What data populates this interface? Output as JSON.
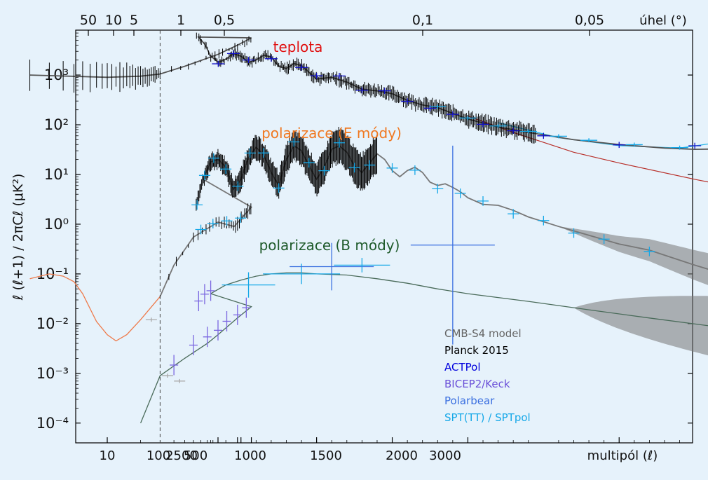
{
  "chart_data": {
    "type": "line",
    "y_scale": "log",
    "ylim": [
      4e-05,
      8000
    ],
    "ylabel": "ℓ (ℓ+1) / 2πCℓ  (μK²)",
    "xlabel": "multipól (ℓ)",
    "top_axis_label": "úhel (°)",
    "x_tick_labels": [
      "10",
      "100",
      "2500",
      "500",
      "1000",
      "1500",
      "2000",
      "3000"
    ],
    "top_tick_labels": [
      "50",
      "10",
      "5",
      "1",
      "0,5",
      "0,1",
      "0,05"
    ],
    "y_tick_labels": [
      "10³",
      "10²",
      "10¹",
      "10⁰",
      "10⁻¹",
      "10⁻²",
      "10⁻³",
      "10⁻⁴"
    ],
    "y_tick_values": [
      1000,
      100,
      10,
      1,
      0.1,
      0.01,
      0.001,
      0.0001
    ],
    "vline_ell": 30,
    "annotations": [
      {
        "text": "teplota",
        "color": "#e01010"
      },
      {
        "text": "polarizace (E módy)",
        "color": "#f07820"
      },
      {
        "text": "polarizace (B módy)",
        "color": "#1e5a2a"
      }
    ],
    "legend": {
      "placement": "lower-right",
      "entries": [
        {
          "name": "CMB-S4  model",
          "color": "#666666"
        },
        {
          "name": "Planck 2015",
          "color": "#000000"
        },
        {
          "name": "ACTPol",
          "color": "#0000dd"
        },
        {
          "name": "BICEP2/Keck",
          "color": "#6a4fd8"
        },
        {
          "name": "Polarbear",
          "color": "#3a6fe0"
        },
        {
          "name": "SPT(TT) / SPTpol",
          "color": "#16a8e8"
        }
      ]
    },
    "series": [
      {
        "name": "teplota",
        "ell": [
          2,
          10,
          20,
          30,
          50,
          100,
          150,
          200,
          220,
          260,
          300,
          350,
          400,
          450,
          500,
          550,
          600,
          650,
          700,
          750,
          800,
          850,
          900,
          1000,
          1100,
          1200,
          1300,
          1400,
          1500,
          1600,
          1700,
          1800,
          2000,
          2200,
          2400,
          2700,
          3000,
          3300,
          3500,
          3800,
          4000
        ],
        "values": [
          1000,
          900,
          950,
          1050,
          1500,
          2600,
          4000,
          5600,
          5800,
          4200,
          2400,
          1800,
          2100,
          2700,
          2400,
          1800,
          2000,
          2500,
          2300,
          1500,
          1350,
          1700,
          1550,
          830,
          900,
          720,
          520,
          480,
          420,
          310,
          250,
          220,
          130,
          90,
          70,
          50,
          40,
          34,
          32,
          33,
          36
        ]
      },
      {
        "name": "polarizace (E módy)",
        "ell": [
          30,
          40,
          60,
          100,
          140,
          200,
          250,
          300,
          350,
          400,
          450,
          500,
          550,
          600,
          650,
          700,
          750,
          800,
          850,
          900,
          950,
          1000,
          1050,
          1100,
          1150,
          1200,
          1250,
          1300,
          1350,
          1400,
          1450,
          1500,
          1550,
          1600,
          1650,
          1700,
          1750,
          1800,
          1850,
          1900,
          1950,
          2000,
          2100,
          2200,
          2300,
          2400,
          2600,
          2800,
          3000,
          3200,
          3500,
          3800,
          4000
        ],
        "values": [
          0.035,
          0.15,
          0.55,
          1.1,
          0.9,
          2.2,
          8,
          18,
          20,
          14,
          5,
          8,
          22,
          35,
          25,
          11,
          6,
          20,
          38,
          30,
          15,
          8,
          14,
          32,
          38,
          28,
          15,
          11,
          17,
          26,
          20,
          12,
          9,
          12,
          14,
          11,
          7,
          6,
          6.5,
          5.5,
          4.5,
          3.4,
          2.5,
          2.4,
          1.9,
          1.4,
          0.9,
          0.6,
          0.4,
          0.3,
          0.15,
          0.08,
          0.06
        ]
      },
      {
        "name": "polarizace (B módy)",
        "ell": [
          2,
          8,
          15,
          20,
          30,
          50,
          80,
          100,
          150,
          200,
          300,
          400,
          500,
          600,
          700,
          800,
          900,
          1000,
          1200,
          1400,
          1600,
          1800,
          2000,
          2400,
          2800,
          3200,
          3600,
          4000
        ],
        "values": [
          0.1,
          0.08,
          0.006,
          0.0001,
          0.0009,
          0.002,
          0.004,
          0.006,
          0.013,
          0.022,
          0.04,
          0.06,
          0.075,
          0.09,
          0.1,
          0.105,
          0.105,
          0.1,
          0.095,
          0.08,
          0.065,
          0.05,
          0.04,
          0.028,
          0.019,
          0.013,
          0.009,
          0.006
        ]
      }
    ]
  }
}
